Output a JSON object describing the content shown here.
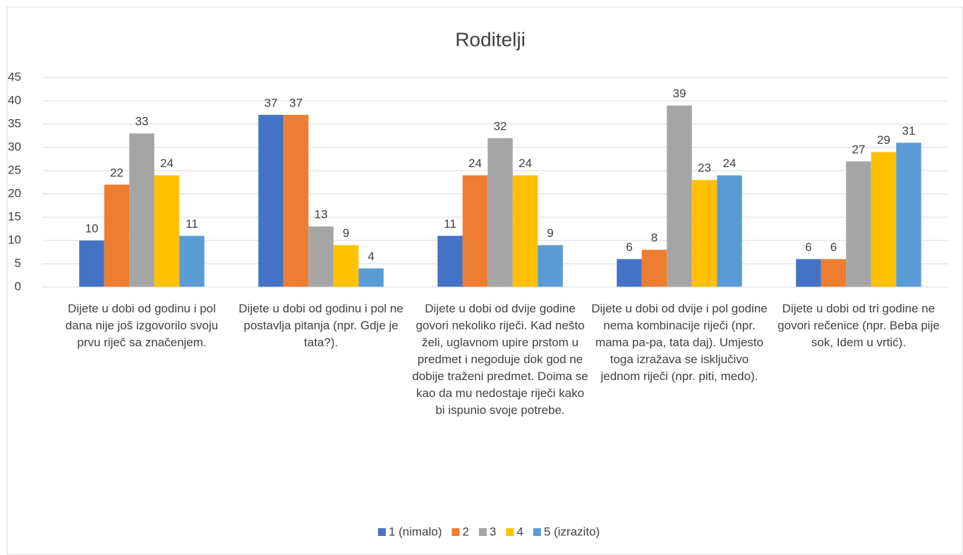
{
  "chart_data": {
    "type": "bar",
    "title": "Roditelji",
    "categories": [
      "Dijete u dobi od godinu i pol dana nije još izgovorilo svoju prvu riječ sa značenjem.",
      "Dijete u dobi od godinu i pol ne postavlja pitanja (npr. Gdje je tata?).",
      "Dijete u dobi od dvije godine govori nekoliko riječi. Kad nešto želi, uglavnom upire prstom u predmet i negoduje dok god ne dobije traženi predmet. Doima se kao da mu nedostaje riječi kako bi ispunio svoje potrebe.",
      "Dijete u dobi od dvije i pol godine nema kombinacije riječi (npr. mama pa-pa, tata daj). Umjesto toga izražava se isključivo jednom riječi (npr. piti, medo).",
      "Dijete u dobi od tri godine ne govori rečenice (npr. Beba pije sok, Idem u vrtić)."
    ],
    "series": [
      {
        "name": "1 (nimalo)",
        "color": "#4472c4",
        "values": [
          10,
          37,
          11,
          6,
          6
        ]
      },
      {
        "name": "2",
        "color": "#ed7d31",
        "values": [
          22,
          37,
          24,
          8,
          6
        ]
      },
      {
        "name": "3",
        "color": "#a5a5a5",
        "values": [
          33,
          13,
          32,
          39,
          27
        ]
      },
      {
        "name": "4",
        "color": "#ffc000",
        "values": [
          24,
          9,
          24,
          23,
          29
        ]
      },
      {
        "name": "5 (izrazito)",
        "color": "#5b9bd5",
        "values": [
          11,
          4,
          9,
          24,
          31
        ]
      }
    ],
    "ylim": [
      0,
      45
    ],
    "yticks": [
      0,
      5,
      10,
      15,
      20,
      25,
      30,
      35,
      40,
      45
    ],
    "grid": true,
    "legend": "bottom"
  }
}
